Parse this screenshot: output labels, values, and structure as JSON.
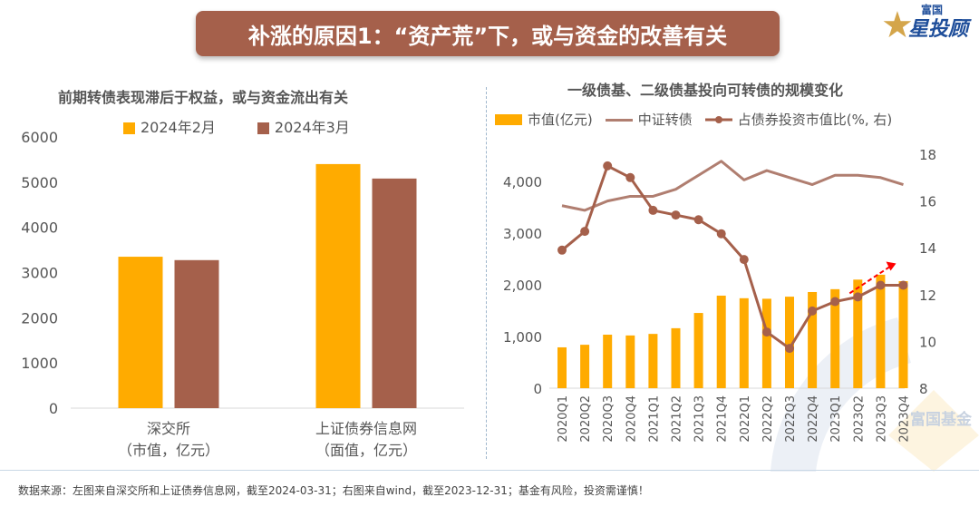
{
  "banner": {
    "title": "补涨的原因1：“资产荒”下，或与资金的改善有关"
  },
  "logo": {
    "line1": "富国",
    "line2": "星投顾",
    "star": "★"
  },
  "watermark": {
    "text": "富国基金"
  },
  "footer": {
    "source": "数据来源：左图来自深交所和上证债券信息网，截至2024-03-31；右图来自wind，截至2023-12-31；基金有风险，投资需谨慎！"
  },
  "colors": {
    "orange": "#ffab00",
    "brown": "#a5604b",
    "csi_line": "#b07e70",
    "arrow": "#ff0000",
    "banner": "#a5604b"
  },
  "chart_data": [
    {
      "type": "bar",
      "title": "前期转债表现滞后于权益，或与资金流出有关",
      "categories": [
        {
          "line1": "深交所",
          "line2": "（市值，亿元）"
        },
        {
          "line1": "上证债券信息网",
          "line2": "（面值，亿元）"
        }
      ],
      "series": [
        {
          "name": "2024年2月",
          "color": "#ffab00",
          "values": [
            3350,
            5400
          ]
        },
        {
          "name": "2024年3月",
          "color": "#a5604b",
          "values": [
            3275,
            5080
          ]
        }
      ],
      "ylim": [
        0,
        6000
      ],
      "yticks": [
        "0",
        "1000",
        "2000",
        "3000",
        "4000",
        "5000",
        "6000"
      ],
      "legend": "top"
    },
    {
      "type": "bar+line",
      "title": "一级债基、二级债基投向可转债的规模变化",
      "categories": [
        "2020Q1",
        "2020Q2",
        "2020Q3",
        "2020Q4",
        "2021Q1",
        "2021Q2",
        "2021Q3",
        "2021Q4",
        "2022Q1",
        "2022Q2",
        "2022Q3",
        "2022Q4",
        "2023Q1",
        "2023Q2",
        "2023Q3",
        "2023Q4"
      ],
      "series": [
        {
          "name": "市值(亿元)",
          "kind": "bar",
          "axis": "left",
          "color": "#ffab00",
          "values": [
            790,
            840,
            1035,
            1020,
            1050,
            1160,
            1455,
            1790,
            1740,
            1730,
            1770,
            1860,
            1915,
            2100,
            2195,
            2070
          ]
        },
        {
          "name": "中证转债",
          "kind": "line",
          "axis": "right",
          "color": "#b07e70",
          "values": [
            15.8,
            15.6,
            16.0,
            16.2,
            16.2,
            16.5,
            17.1,
            17.7,
            16.9,
            17.3,
            17.0,
            16.7,
            17.1,
            17.1,
            17.0,
            16.7
          ]
        },
        {
          "name": "占债券投资市值比(%, 右)",
          "kind": "line-marker",
          "axis": "right",
          "color": "#a5604b",
          "values": [
            13.9,
            14.7,
            17.5,
            17.0,
            15.6,
            15.4,
            15.2,
            14.6,
            13.5,
            10.4,
            9.7,
            11.3,
            11.7,
            11.9,
            12.4,
            12.4
          ]
        }
      ],
      "ylim_left": [
        0,
        4500
      ],
      "yticks_left": [
        "0",
        "1,000",
        "2,000",
        "3,000",
        "4,000"
      ],
      "ylim_right": [
        8,
        18
      ],
      "yticks_right": [
        "8",
        "10",
        "12",
        "14",
        "16",
        "18"
      ],
      "annotation": "red dashed upward arrow over 2023Q2–2023Q4",
      "legend": "top"
    }
  ]
}
